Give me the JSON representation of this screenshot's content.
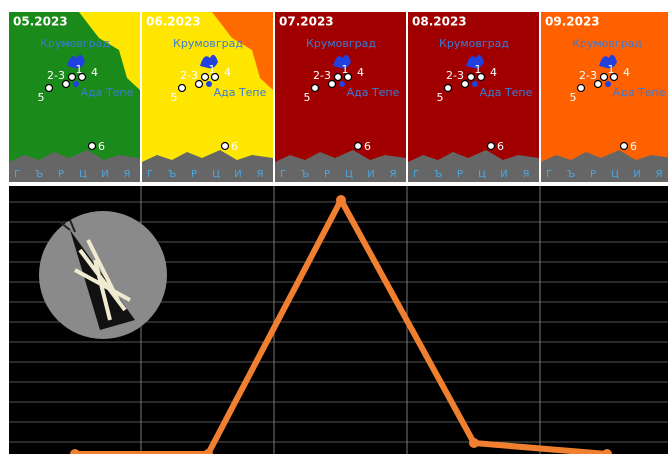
{
  "chart_data": {
    "type": "line",
    "categories": [
      "05.2023",
      "06.2023",
      "07.2023",
      "08.2023",
      "09.2023"
    ],
    "series": [
      {
        "color": "#f08030",
        "values": [
          0.3,
          0.3,
          13,
          0.85,
          0.3
        ]
      }
    ],
    "ylim": [
      0,
      13.7
    ],
    "grid": true,
    "map_colors": [
      [
        "#1a8a1a",
        "#ffe600"
      ],
      [
        "#ffe600",
        "#ff6a00"
      ],
      [
        "#a00000",
        "#a00000"
      ],
      [
        "#a00000",
        "#a00000"
      ],
      [
        "#ff6000",
        "#ff6000"
      ]
    ]
  },
  "map_labels": {
    "town": "Крумовград",
    "site": "Ада Тепе",
    "point_1": "1",
    "point_2_3": "2-3",
    "point_4": "4",
    "point_5": "5",
    "point_6": "6",
    "country": [
      "Г",
      "Ъ",
      "Р",
      "Ц",
      "И",
      "Я"
    ]
  }
}
